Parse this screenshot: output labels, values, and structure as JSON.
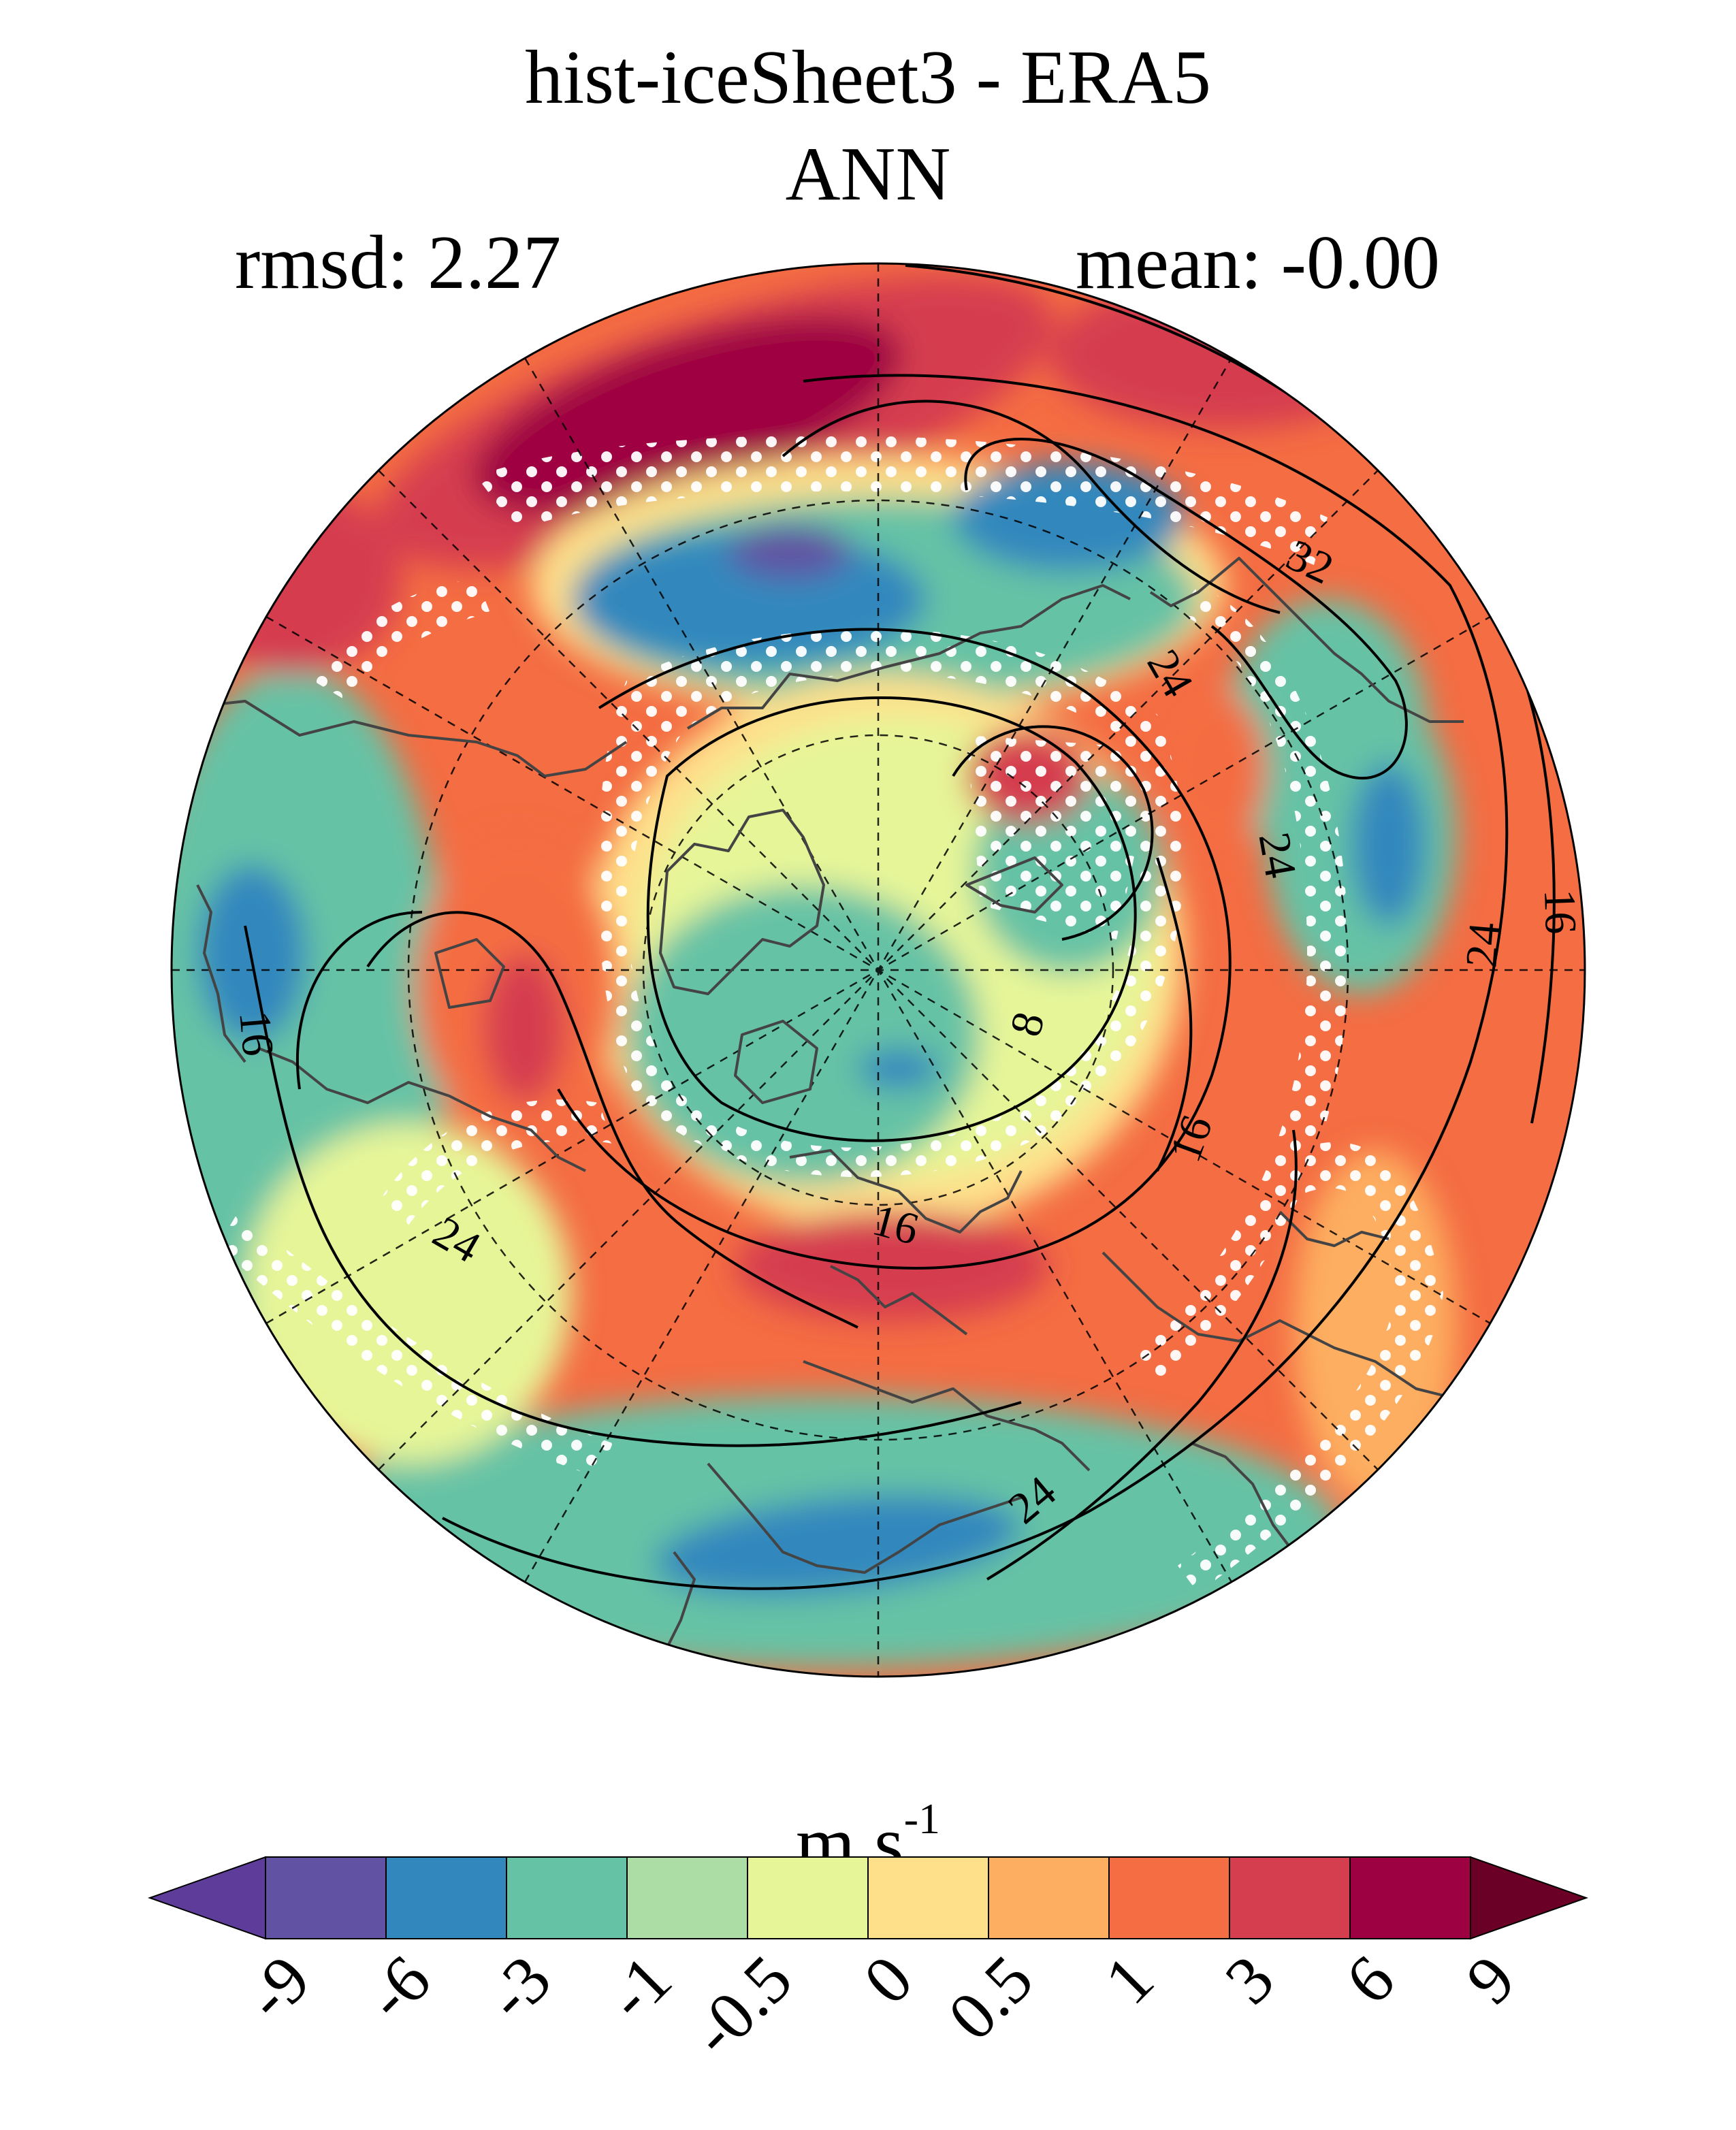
{
  "title": "hist-iceSheet3 - ERA5",
  "subtitle": "ANN",
  "rmsd_label": "rmsd: 2.27",
  "mean_label": "mean: -0.00",
  "units": {
    "base": "m s",
    "exponent": "-1"
  },
  "colorbar": {
    "levels": [
      "-9",
      "-6",
      "-3",
      "-1",
      "-0.5",
      "0",
      "0.5",
      "1",
      "3",
      "6",
      "9"
    ],
    "colors": [
      "#5e3c99",
      "#6152a3",
      "#3288bd",
      "#66c2a5",
      "#abdda4",
      "#e6f598",
      "#fee08b",
      "#fdae61",
      "#f46d43",
      "#d53e4f",
      "#9e0142",
      "#6a0025"
    ]
  },
  "contour_labels": [
    "32",
    "24",
    "24",
    "16",
    "16",
    "16",
    "24",
    "8",
    "24",
    "16",
    "24"
  ],
  "map": {
    "projection": "north polar stereographic",
    "background_color": "#f46d43"
  }
}
